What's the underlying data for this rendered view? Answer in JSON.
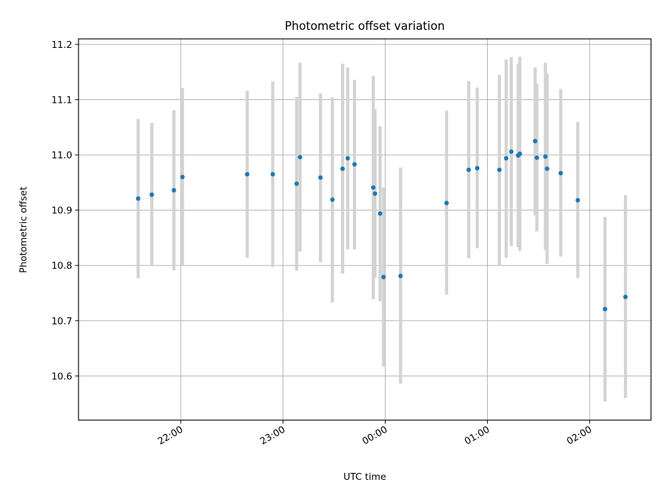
{
  "chart_data": {
    "type": "scatter",
    "title": "Photometric offset variation",
    "xlabel": "UTC time",
    "ylabel": "Photometric offset",
    "x_axis_type": "time",
    "date_start": "22:00",
    "xlim": [
      "21:00",
      "02:36"
    ],
    "ylim": [
      10.52,
      11.21
    ],
    "xticks": [
      "22:00",
      "23:00",
      "00:00",
      "01:00",
      "02:00"
    ],
    "yticks": [
      "10.6",
      "10.7",
      "10.8",
      "10.9",
      "11.0",
      "11.1",
      "11.2"
    ],
    "grid": true,
    "marker_color": "#1f77b4",
    "errorbar_color": "#d3d3d3",
    "series": [
      {
        "points": [
          {
            "x": "21:35",
            "y": 10.921,
            "low": 10.777,
            "high": 11.065
          },
          {
            "x": "21:43",
            "y": 10.928,
            "low": 10.8,
            "high": 11.058
          },
          {
            "x": "21:56",
            "y": 10.936,
            "low": 10.791,
            "high": 11.081
          },
          {
            "x": "22:01",
            "y": 10.96,
            "low": 10.8,
            "high": 11.121
          },
          {
            "x": "22:39",
            "y": 10.965,
            "low": 10.814,
            "high": 11.116
          },
          {
            "x": "22:54",
            "y": 10.965,
            "low": 10.797,
            "high": 11.133
          },
          {
            "x": "23:08",
            "y": 10.948,
            "low": 10.791,
            "high": 11.105
          },
          {
            "x": "23:10",
            "y": 10.996,
            "low": 10.825,
            "high": 11.167
          },
          {
            "x": "23:22",
            "y": 10.959,
            "low": 10.806,
            "high": 11.111
          },
          {
            "x": "23:29",
            "y": 10.919,
            "low": 10.733,
            "high": 11.104
          },
          {
            "x": "23:35",
            "y": 10.975,
            "low": 10.785,
            "high": 11.165
          },
          {
            "x": "23:38",
            "y": 10.994,
            "low": 10.829,
            "high": 11.158
          },
          {
            "x": "23:42",
            "y": 10.983,
            "low": 10.829,
            "high": 11.136
          },
          {
            "x": "23:53",
            "y": 10.941,
            "low": 10.739,
            "high": 11.143
          },
          {
            "x": "23:54",
            "y": 10.93,
            "low": 10.778,
            "high": 11.083
          },
          {
            "x": "23:57",
            "y": 10.894,
            "low": 10.735,
            "high": 11.052
          },
          {
            "x": "23:59",
            "y": 10.779,
            "low": 10.617,
            "high": 10.941
          },
          {
            "x": "00:09",
            "y": 10.781,
            "low": 10.586,
            "high": 10.977
          },
          {
            "x": "00:36",
            "y": 10.913,
            "low": 10.747,
            "high": 11.08
          },
          {
            "x": "00:49",
            "y": 10.973,
            "low": 10.813,
            "high": 11.134
          },
          {
            "x": "00:54",
            "y": 10.976,
            "low": 10.831,
            "high": 11.122
          },
          {
            "x": "01:07",
            "y": 10.973,
            "low": 10.8,
            "high": 11.145
          },
          {
            "x": "01:11",
            "y": 10.994,
            "low": 10.814,
            "high": 11.173
          },
          {
            "x": "01:14",
            "y": 11.006,
            "low": 10.835,
            "high": 11.177
          },
          {
            "x": "01:18",
            "y": 10.999,
            "low": 10.833,
            "high": 11.165
          },
          {
            "x": "01:19",
            "y": 11.002,
            "low": 10.826,
            "high": 11.178
          },
          {
            "x": "01:28",
            "y": 11.025,
            "low": 10.891,
            "high": 11.158
          },
          {
            "x": "01:29",
            "y": 10.995,
            "low": 10.862,
            "high": 11.129
          },
          {
            "x": "01:34",
            "y": 10.997,
            "low": 10.828,
            "high": 11.167
          },
          {
            "x": "01:35",
            "y": 10.975,
            "low": 10.803,
            "high": 11.147
          },
          {
            "x": "01:43",
            "y": 10.967,
            "low": 10.816,
            "high": 11.119
          },
          {
            "x": "01:53",
            "y": 10.918,
            "low": 10.777,
            "high": 11.06
          },
          {
            "x": "02:09",
            "y": 10.721,
            "low": 10.554,
            "high": 10.888
          },
          {
            "x": "02:21",
            "y": 10.743,
            "low": 10.56,
            "high": 10.927
          }
        ]
      }
    ]
  }
}
